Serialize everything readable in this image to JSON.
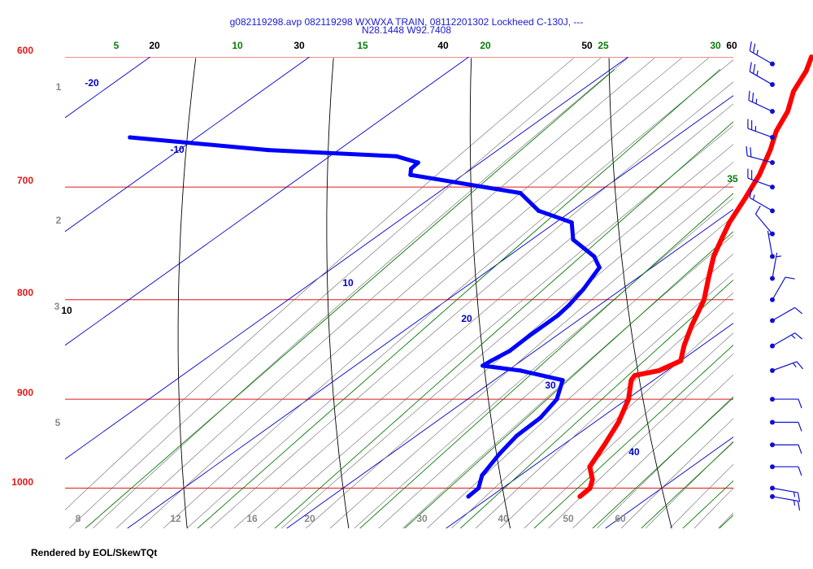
{
  "header": {
    "title_line1": "g082119298.avp 082119298 WXWXA TRAIN, 08112201302 Lockheed C-130J, ---",
    "title_line2": "N28.1448 W92.7408"
  },
  "footer": {
    "text": "Rendered by EOL/SkewTQt"
  },
  "colors": {
    "isobar": "#e01818",
    "temperature": "#ff0000",
    "dewpoint": "#0000ff",
    "isotherm": "#0000c8",
    "dry_adiabat": "#000000",
    "moist_adiabat": "#6e6e6e",
    "mixing_ratio": "#0a7a0a",
    "wind": "#1010d0"
  },
  "chart_data": {
    "type": "skew-t",
    "pressure_levels_hPa": [
      "600",
      "700",
      "800",
      "900",
      "1000"
    ],
    "isotherm_labels_C": [
      "-20",
      "-10",
      "10",
      "20",
      "30",
      "40"
    ],
    "dry_adiabat_labels": [
      "20",
      "30",
      "40",
      "50",
      "60",
      "10"
    ],
    "mixing_ratio_labels": [
      "5",
      "10",
      "15",
      "20",
      "25",
      "30",
      "35"
    ],
    "height_labels_km": [
      "1",
      "2",
      "3",
      "5"
    ],
    "bottom_labels": [
      "8",
      "12",
      "16",
      "20",
      "30",
      "40",
      "50",
      "60"
    ],
    "temperature_profile": [
      {
        "p": 1010,
        "t": 25.6
      },
      {
        "p": 1000,
        "t": 25.5
      },
      {
        "p": 990,
        "t": 24.9
      },
      {
        "p": 975,
        "t": 23.6
      },
      {
        "p": 950,
        "t": 22.6
      },
      {
        "p": 925,
        "t": 21.5
      },
      {
        "p": 900,
        "t": 20.1
      },
      {
        "p": 880,
        "t": 18.6
      },
      {
        "p": 875,
        "t": 18.4
      },
      {
        "p": 870,
        "t": 19.5
      },
      {
        "p": 860,
        "t": 20.0
      },
      {
        "p": 845,
        "t": 18.9
      },
      {
        "p": 825,
        "t": 17.6
      },
      {
        "p": 800,
        "t": 16.1
      },
      {
        "p": 780,
        "t": 14.5
      },
      {
        "p": 760,
        "t": 12.9
      },
      {
        "p": 745,
        "t": 11.9
      },
      {
        "p": 730,
        "t": 10.9
      },
      {
        "p": 710,
        "t": 9.8
      },
      {
        "p": 700,
        "t": 9.2
      },
      {
        "p": 690,
        "t": 8.6
      },
      {
        "p": 670,
        "t": 7.1
      },
      {
        "p": 655,
        "t": 5.8
      },
      {
        "p": 640,
        "t": 4.8
      },
      {
        "p": 625,
        "t": 3.4
      },
      {
        "p": 610,
        "t": 2.4
      },
      {
        "p": 600,
        "t": 1.5
      }
    ],
    "dewpoint_profile": [
      {
        "p": 1010,
        "td": 18.6
      },
      {
        "p": 1000,
        "td": 18.5
      },
      {
        "p": 985,
        "td": 17.6
      },
      {
        "p": 960,
        "td": 16.8
      },
      {
        "p": 940,
        "td": 16.3
      },
      {
        "p": 920,
        "td": 16.2
      },
      {
        "p": 900,
        "td": 15.6
      },
      {
        "p": 880,
        "td": 14.3
      },
      {
        "p": 870,
        "td": 10.8
      },
      {
        "p": 865,
        "td": 8.0
      },
      {
        "p": 860,
        "td": 8.1
      },
      {
        "p": 850,
        "td": 8.4
      },
      {
        "p": 835,
        "td": 8.3
      },
      {
        "p": 815,
        "td": 8.3
      },
      {
        "p": 805,
        "td": 8.1
      },
      {
        "p": 790,
        "td": 7.6
      },
      {
        "p": 770,
        "td": 6.7
      },
      {
        "p": 760,
        "td": 5.4
      },
      {
        "p": 745,
        "td": 2.6
      },
      {
        "p": 730,
        "td": 1.0
      },
      {
        "p": 720,
        "td": -2.1
      },
      {
        "p": 705,
        "td": -4.8
      },
      {
        "p": 690,
        "td": -13.3
      },
      {
        "p": 685,
        "td": -13.8
      },
      {
        "p": 680,
        "td": -13.9
      },
      {
        "p": 675,
        "td": -15.8
      },
      {
        "p": 670,
        "td": -24.4
      },
      {
        "p": 660,
        "td": -34.2
      }
    ],
    "wind_barbs": [
      {
        "p": 605,
        "dir": 300,
        "spd": 25
      },
      {
        "p": 620,
        "dir": 300,
        "spd": 25
      },
      {
        "p": 640,
        "dir": 295,
        "spd": 25
      },
      {
        "p": 660,
        "dir": 290,
        "spd": 25
      },
      {
        "p": 680,
        "dir": 285,
        "spd": 20
      },
      {
        "p": 700,
        "dir": 290,
        "spd": 20
      },
      {
        "p": 720,
        "dir": 300,
        "spd": 15
      },
      {
        "p": 740,
        "dir": 320,
        "spd": 10
      },
      {
        "p": 760,
        "dir": 350,
        "spd": 5
      },
      {
        "p": 780,
        "dir": 10,
        "spd": 5
      },
      {
        "p": 800,
        "dir": 30,
        "spd": 10
      },
      {
        "p": 820,
        "dir": 60,
        "spd": 10
      },
      {
        "p": 845,
        "dir": 60,
        "spd": 15
      },
      {
        "p": 870,
        "dir": 70,
        "spd": 15
      },
      {
        "p": 900,
        "dir": 90,
        "spd": 10
      },
      {
        "p": 925,
        "dir": 90,
        "spd": 10
      },
      {
        "p": 950,
        "dir": 90,
        "spd": 10
      },
      {
        "p": 975,
        "dir": 90,
        "spd": 10
      },
      {
        "p": 1000,
        "dir": 100,
        "spd": 15
      },
      {
        "p": 1010,
        "dir": 100,
        "spd": 15
      }
    ]
  }
}
